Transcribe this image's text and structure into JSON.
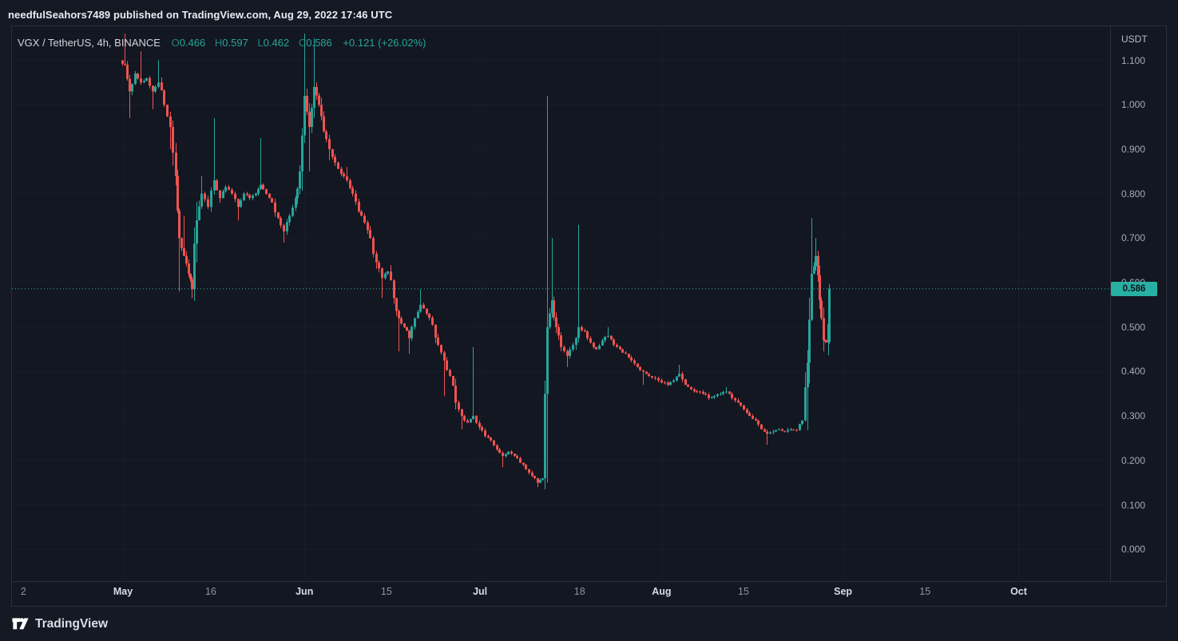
{
  "header": {
    "attribution": "needfulSeahors7489 published on TradingView.com, Aug 29, 2022 17:46 UTC"
  },
  "legend": {
    "symbol": "VGX / TetherUS, 4h, BINANCE",
    "ohlc": [
      {
        "label": "O",
        "value": "0.466"
      },
      {
        "label": "H",
        "value": "0.597"
      },
      {
        "label": "L",
        "value": "0.462"
      },
      {
        "label": "C",
        "value": "0.586"
      }
    ],
    "change": "+0.121 (+26.02%)"
  },
  "price_axis": {
    "unit": "USDT",
    "last_price_label": "0.586"
  },
  "footer": {
    "brand": "TradingView"
  },
  "colors": {
    "background": "#131722",
    "up": "#26a69a",
    "down": "#ef5350",
    "accent": "#26a69a",
    "price_line": "#2ab9aa",
    "price_tag_bg": "#28b1a3",
    "price_tag_text": "#0e131c",
    "grid": "rgba(178,181,190,0.04)",
    "axis_border": "#2a2e39"
  },
  "chart_data": {
    "type": "candlestick",
    "title": "VGX / TetherUS, 4h, BINANCE",
    "symbol": "VGX/USDT",
    "exchange": "BINANCE",
    "interval": "4h",
    "ylabel": "USDT",
    "xlabel": "",
    "ylim": [
      0.0,
      1.178
    ],
    "grid": "faint",
    "last_price": 0.586,
    "last_candle": {
      "open": 0.466,
      "high": 0.597,
      "low": 0.462,
      "close": 0.586,
      "change": "+0.121",
      "change_pct": "+26.02%"
    },
    "y_axis": {
      "ticks": [
        {
          "label": "1.100",
          "value": 1.1
        },
        {
          "label": "1.000",
          "value": 1.0
        },
        {
          "label": "0.900",
          "value": 0.9
        },
        {
          "label": "0.800",
          "value": 0.8
        },
        {
          "label": "0.700",
          "value": 0.7
        },
        {
          "label": "0.600",
          "value": 0.6
        },
        {
          "label": "0.500",
          "value": 0.5
        },
        {
          "label": "0.400",
          "value": 0.4
        },
        {
          "label": "0.300",
          "value": 0.3
        },
        {
          "label": "0.200",
          "value": 0.2
        },
        {
          "label": "0.100",
          "value": 0.1
        },
        {
          "label": "0.000",
          "value": 0.0
        }
      ]
    },
    "x_axis": {
      "day_zero": "May 1, 2022",
      "labels": [
        {
          "text": "2",
          "day": -17,
          "major": false
        },
        {
          "text": "May",
          "day": 0,
          "major": true
        },
        {
          "text": "16",
          "day": 15,
          "major": false
        },
        {
          "text": "Jun",
          "day": 31,
          "major": true
        },
        {
          "text": "15",
          "day": 45,
          "major": false
        },
        {
          "text": "Jul",
          "day": 61,
          "major": true
        },
        {
          "text": "18",
          "day": 78,
          "major": false
        },
        {
          "text": "Aug",
          "day": 92,
          "major": true
        },
        {
          "text": "15",
          "day": 106,
          "major": false
        },
        {
          "text": "Sep",
          "day": 123,
          "major": true
        },
        {
          "text": "15",
          "day": 137,
          "major": false
        },
        {
          "text": "Oct",
          "day": 153,
          "major": true
        }
      ]
    },
    "candles_per_segment": 2,
    "seed": 7,
    "price_path": [
      [
        -0.5,
        1.1,
        1.14,
        null
      ],
      [
        0.3,
        1.09,
        1.16,
        null
      ],
      [
        1.1,
        1.03,
        null,
        0.97
      ],
      [
        2.0,
        1.07,
        null,
        null
      ],
      [
        3.0,
        1.05,
        1.12,
        null
      ],
      [
        4.0,
        1.06,
        null,
        null
      ],
      [
        5.0,
        1.03,
        null,
        0.99
      ],
      [
        6.0,
        1.05,
        1.1,
        null
      ],
      [
        7.0,
        1.0,
        null,
        null
      ],
      [
        8.0,
        0.95,
        null,
        0.9
      ],
      [
        9.0,
        0.84,
        null,
        null
      ],
      [
        9.6,
        0.7,
        null,
        0.58
      ],
      [
        10.4,
        0.66,
        0.75,
        null
      ],
      [
        11.2,
        0.62,
        null,
        null
      ],
      [
        11.8,
        0.585,
        null,
        0.565
      ],
      [
        12.5,
        0.74,
        null,
        null
      ],
      [
        13.4,
        0.8,
        0.84,
        null
      ],
      [
        14.4,
        0.77,
        null,
        null
      ],
      [
        15.5,
        0.83,
        0.97,
        null
      ],
      [
        16.5,
        0.79,
        null,
        null
      ],
      [
        17.5,
        0.815,
        null,
        null
      ],
      [
        18.6,
        0.8,
        null,
        null
      ],
      [
        19.6,
        0.77,
        null,
        0.74
      ],
      [
        20.6,
        0.8,
        null,
        null
      ],
      [
        21.6,
        0.79,
        null,
        null
      ],
      [
        22.6,
        0.8,
        null,
        null
      ],
      [
        23.4,
        0.82,
        0.925,
        null
      ],
      [
        24.4,
        0.8,
        null,
        null
      ],
      [
        25.4,
        0.78,
        null,
        null
      ],
      [
        26.4,
        0.745,
        null,
        null
      ],
      [
        27.4,
        0.715,
        null,
        0.69
      ],
      [
        28.4,
        0.75,
        null,
        null
      ],
      [
        29.4,
        0.79,
        null,
        null
      ],
      [
        30.2,
        0.85,
        null,
        null
      ],
      [
        31.0,
        1.02,
        1.16,
        null
      ],
      [
        31.8,
        0.95,
        null,
        0.85
      ],
      [
        32.6,
        1.04,
        1.15,
        null
      ],
      [
        33.4,
        1.0,
        null,
        null
      ],
      [
        34.2,
        0.94,
        null,
        null
      ],
      [
        35.2,
        0.9,
        null,
        0.875
      ],
      [
        36.2,
        0.87,
        null,
        null
      ],
      [
        37.2,
        0.845,
        null,
        null
      ],
      [
        38.2,
        0.83,
        0.86,
        null
      ],
      [
        39.2,
        0.8,
        null,
        null
      ],
      [
        40.2,
        0.76,
        null,
        null
      ],
      [
        41.2,
        0.735,
        null,
        null
      ],
      [
        42.2,
        0.7,
        null,
        null
      ],
      [
        43.2,
        0.645,
        null,
        null
      ],
      [
        44.2,
        0.61,
        null,
        0.565
      ],
      [
        45.2,
        0.625,
        null,
        null
      ],
      [
        46.2,
        0.565,
        null,
        null
      ],
      [
        47.0,
        0.52,
        null,
        0.445
      ],
      [
        48.0,
        0.5,
        null,
        null
      ],
      [
        48.8,
        0.475,
        null,
        0.44
      ],
      [
        49.8,
        0.52,
        null,
        null
      ],
      [
        50.8,
        0.55,
        0.585,
        null
      ],
      [
        51.8,
        0.53,
        null,
        null
      ],
      [
        52.8,
        0.505,
        null,
        null
      ],
      [
        53.8,
        0.46,
        null,
        null
      ],
      [
        54.8,
        0.425,
        null,
        0.345
      ],
      [
        55.8,
        0.39,
        null,
        null
      ],
      [
        56.8,
        0.33,
        null,
        null
      ],
      [
        57.8,
        0.3,
        null,
        0.27
      ],
      [
        58.8,
        0.285,
        null,
        null
      ],
      [
        59.8,
        0.3,
        0.455,
        null
      ],
      [
        60.8,
        0.275,
        null,
        null
      ],
      [
        61.8,
        0.255,
        null,
        null
      ],
      [
        62.8,
        0.245,
        null,
        null
      ],
      [
        63.8,
        0.225,
        null,
        null
      ],
      [
        64.8,
        0.21,
        null,
        0.185
      ],
      [
        65.8,
        0.22,
        null,
        null
      ],
      [
        66.8,
        0.21,
        null,
        null
      ],
      [
        67.8,
        0.195,
        null,
        null
      ],
      [
        68.8,
        0.18,
        null,
        null
      ],
      [
        69.8,
        0.165,
        null,
        null
      ],
      [
        70.8,
        0.15,
        null,
        0.14
      ],
      [
        71.6,
        0.16,
        null,
        null
      ],
      [
        72.4,
        0.5,
        1.02,
        0.15
      ],
      [
        73.2,
        0.56,
        0.7,
        null
      ],
      [
        74.0,
        0.5,
        null,
        null
      ],
      [
        74.8,
        0.455,
        null,
        null
      ],
      [
        75.8,
        0.435,
        null,
        0.41
      ],
      [
        76.8,
        0.46,
        null,
        null
      ],
      [
        77.8,
        0.5,
        0.73,
        null
      ],
      [
        78.8,
        0.49,
        null,
        null
      ],
      [
        79.8,
        0.465,
        null,
        null
      ],
      [
        80.8,
        0.45,
        null,
        null
      ],
      [
        81.8,
        0.47,
        null,
        null
      ],
      [
        82.8,
        0.48,
        0.5,
        null
      ],
      [
        83.8,
        0.46,
        null,
        null
      ],
      [
        84.8,
        0.45,
        null,
        null
      ],
      [
        85.8,
        0.44,
        null,
        null
      ],
      [
        86.8,
        0.425,
        null,
        null
      ],
      [
        87.8,
        0.41,
        null,
        null
      ],
      [
        88.8,
        0.4,
        null,
        0.37
      ],
      [
        89.8,
        0.39,
        null,
        null
      ],
      [
        90.9,
        0.385,
        null,
        null
      ],
      [
        92.0,
        0.375,
        null,
        null
      ],
      [
        93.0,
        0.37,
        null,
        null
      ],
      [
        94.0,
        0.38,
        null,
        null
      ],
      [
        95.0,
        0.395,
        0.415,
        null
      ],
      [
        96.0,
        0.37,
        null,
        null
      ],
      [
        97.0,
        0.36,
        null,
        null
      ],
      [
        98.0,
        0.355,
        null,
        null
      ],
      [
        99.0,
        0.35,
        null,
        null
      ],
      [
        100.0,
        0.34,
        null,
        null
      ],
      [
        101.0,
        0.345,
        null,
        null
      ],
      [
        102.0,
        0.35,
        null,
        null
      ],
      [
        103.0,
        0.355,
        0.365,
        null
      ],
      [
        104.0,
        0.34,
        null,
        null
      ],
      [
        105.0,
        0.33,
        null,
        null
      ],
      [
        106.0,
        0.315,
        null,
        null
      ],
      [
        107.0,
        0.3,
        null,
        null
      ],
      [
        108.0,
        0.29,
        null,
        null
      ],
      [
        109.0,
        0.27,
        null,
        null
      ],
      [
        110.0,
        0.26,
        null,
        0.235
      ],
      [
        111.0,
        0.265,
        null,
        null
      ],
      [
        112.0,
        0.27,
        null,
        null
      ],
      [
        113.0,
        0.265,
        null,
        null
      ],
      [
        114.0,
        0.27,
        null,
        null
      ],
      [
        115.0,
        0.268,
        null,
        null
      ],
      [
        116.0,
        0.29,
        null,
        null
      ],
      [
        116.9,
        0.42,
        null,
        0.268
      ],
      [
        117.6,
        0.62,
        0.745,
        null
      ],
      [
        118.3,
        0.66,
        0.7,
        null
      ],
      [
        119.0,
        0.56,
        null,
        null
      ],
      [
        119.6,
        0.47,
        null,
        0.445
      ],
      [
        120.2,
        0.466,
        null,
        null
      ],
      [
        120.6,
        0.586,
        0.597,
        0.462
      ]
    ]
  }
}
